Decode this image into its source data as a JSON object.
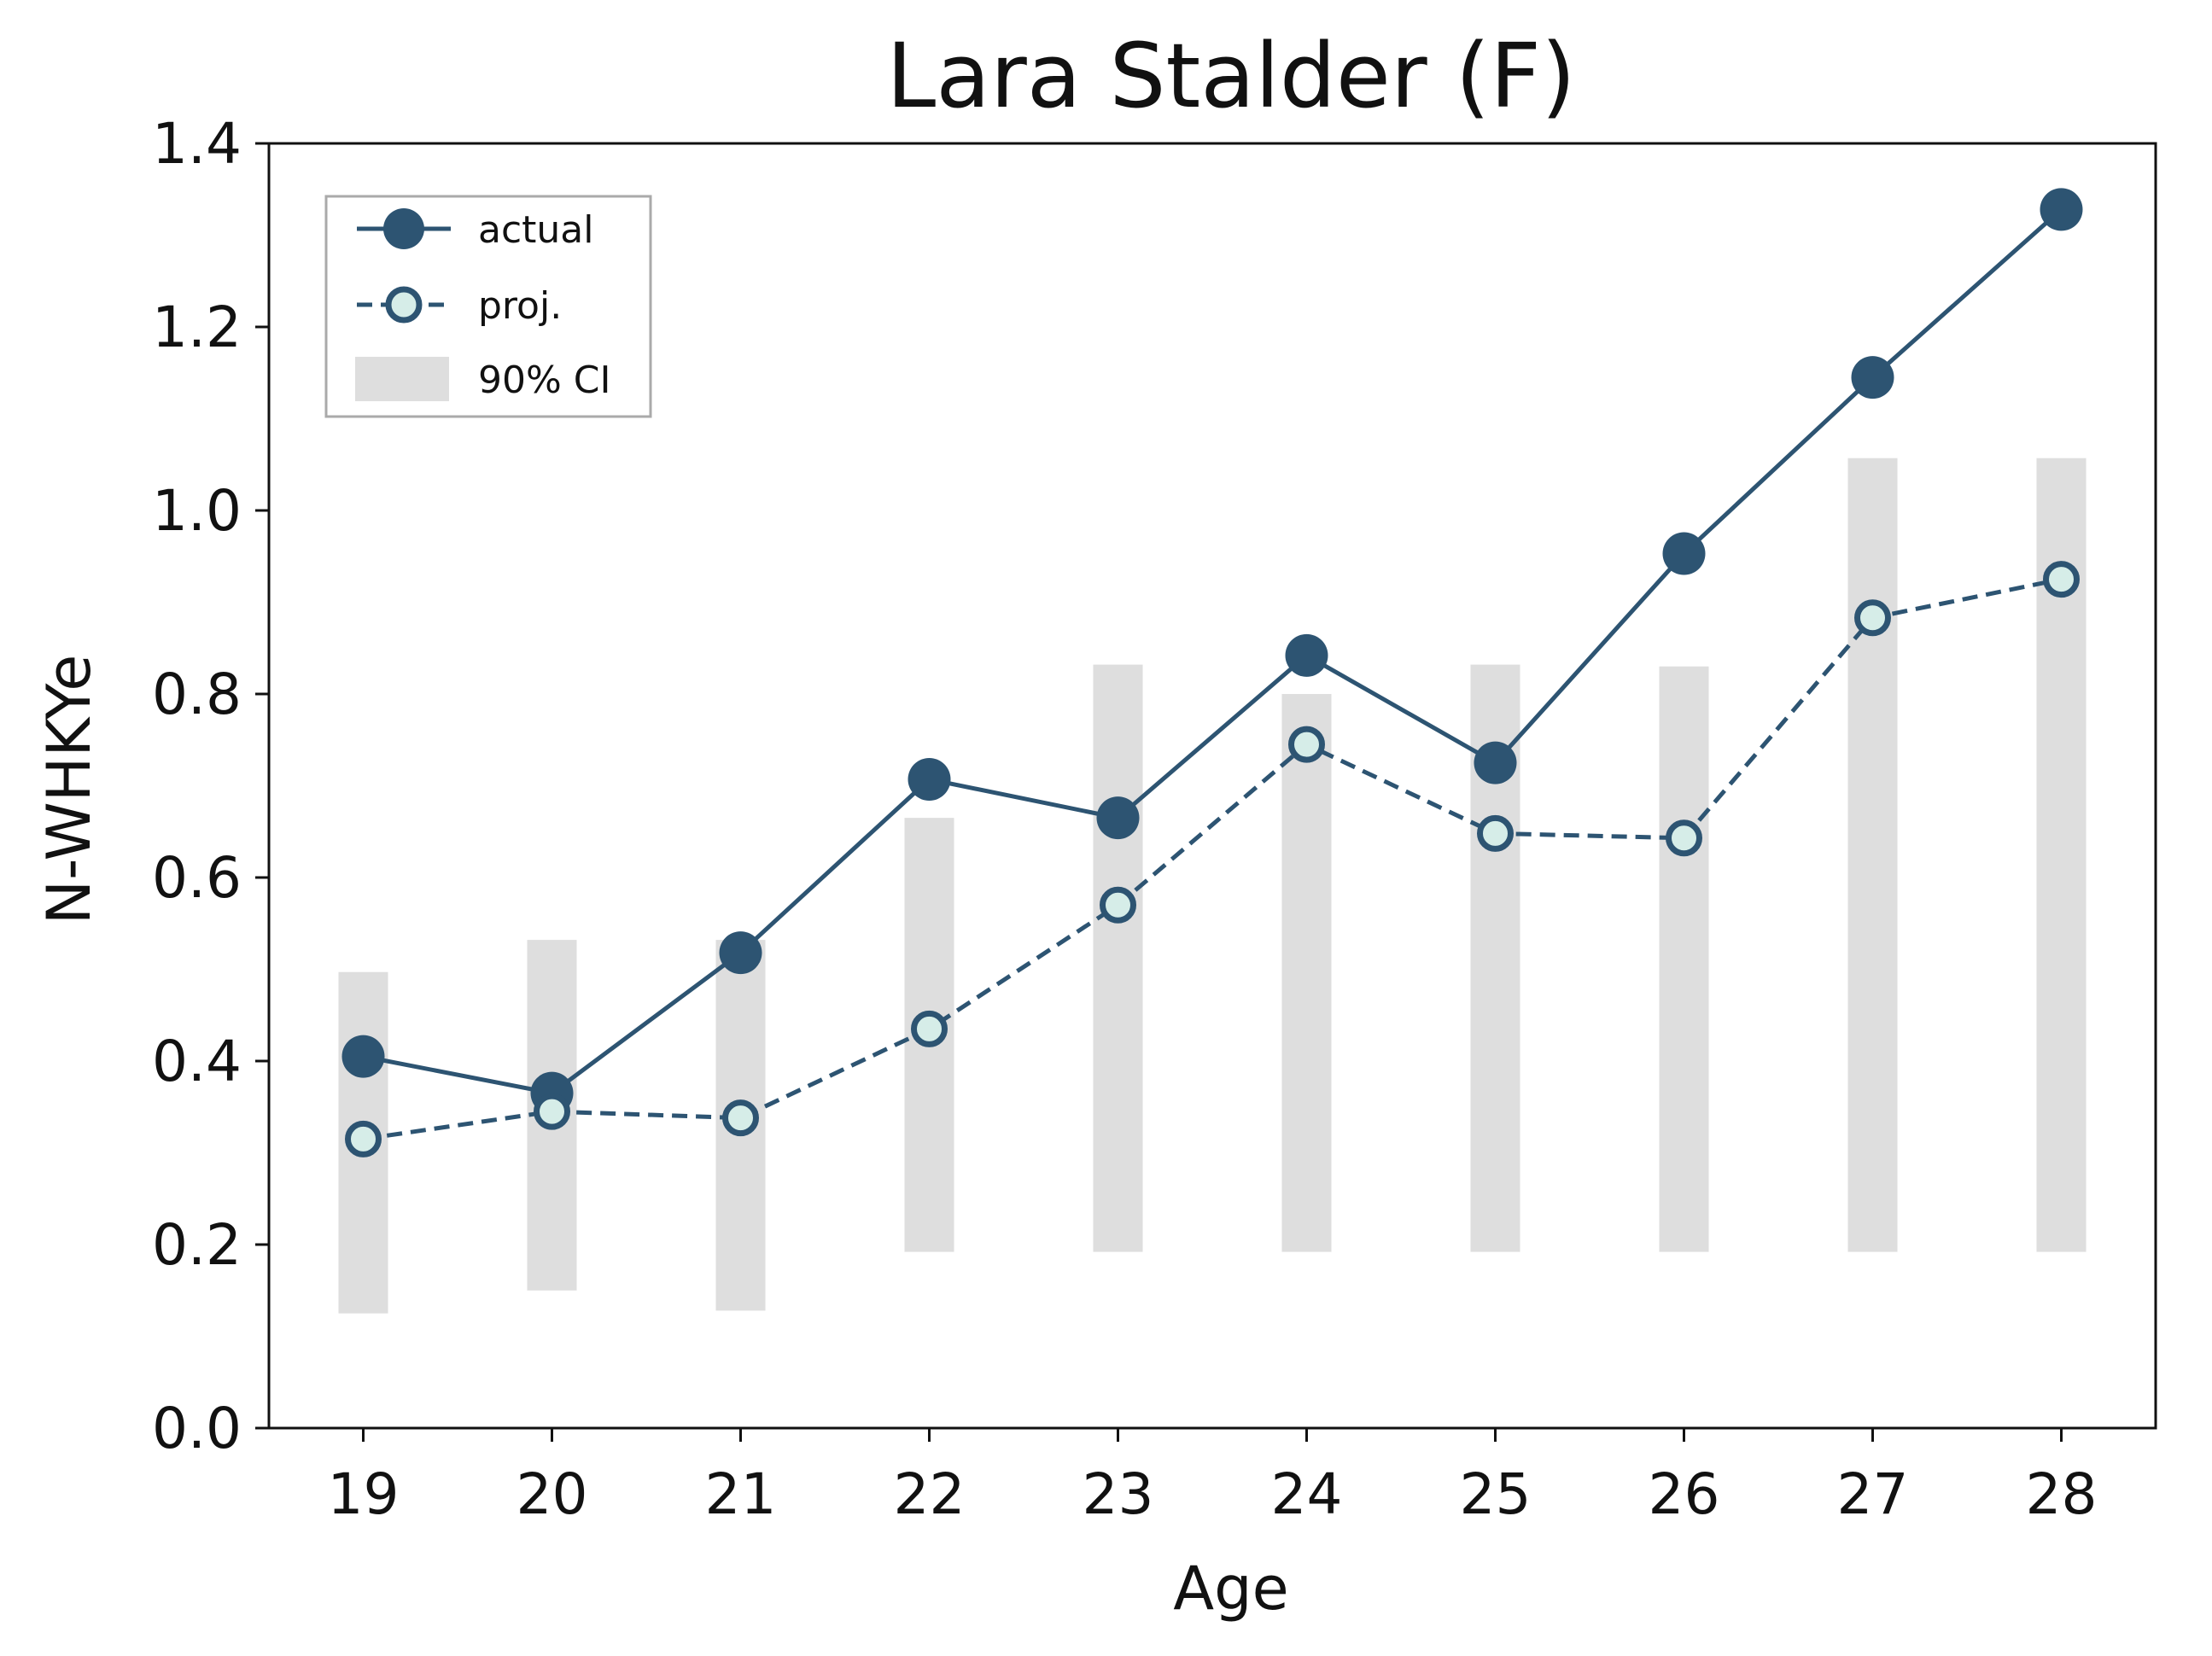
{
  "colors": {
    "line": "#2d5472",
    "proj_fill": "#d6ede8",
    "ci": "#dedede",
    "axis": "#111111",
    "legend_border": "#aaaaaa"
  },
  "chart_data": {
    "type": "line",
    "title": "Lara Stalder (F)",
    "xlabel": "Age",
    "ylabel": "N-WHKYe",
    "x": [
      19,
      20,
      21,
      22,
      23,
      24,
      25,
      26,
      27,
      28
    ],
    "xlim": [
      18.5,
      28.5
    ],
    "ylim": [
      0.0,
      1.4
    ],
    "yticks": [
      "0.0",
      "0.2",
      "0.4",
      "0.6",
      "0.8",
      "1.0",
      "1.2",
      "1.4"
    ],
    "xticks": [
      "19",
      "20",
      "21",
      "22",
      "23",
      "24",
      "25",
      "26",
      "27",
      "28"
    ],
    "grid": false,
    "legend_position": "top-left",
    "series": [
      {
        "name": "actual",
        "style": "solid",
        "values": [
          0.405,
          0.365,
          0.518,
          0.707,
          0.665,
          0.842,
          0.725,
          0.953,
          1.145,
          1.328
        ]
      },
      {
        "name": "proj.",
        "style": "dashed",
        "values": [
          0.315,
          0.345,
          0.338,
          0.435,
          0.57,
          0.745,
          0.648,
          0.643,
          0.883,
          0.925
        ]
      }
    ],
    "ci": {
      "name": "90% CI",
      "lower": [
        0.125,
        0.15,
        0.128,
        0.192,
        0.192,
        0.192,
        0.192,
        0.192,
        0.192,
        0.192
      ],
      "upper": [
        0.497,
        0.532,
        0.532,
        0.665,
        0.832,
        0.8,
        0.832,
        0.83,
        1.057,
        1.057
      ]
    }
  }
}
